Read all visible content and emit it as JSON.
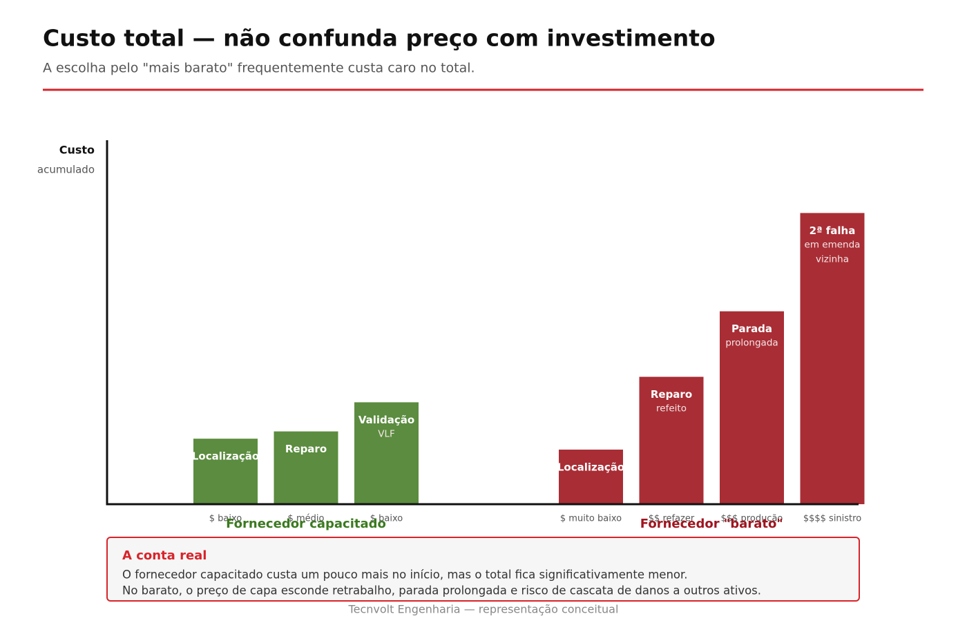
{
  "chart_data": {
    "type": "grouped-bar",
    "title": "Custo total — não confunda preço com investimento",
    "subtitle": "A escolha pelo \"mais barato\" frequentemente custa caro no total.",
    "y_label": "Custo",
    "y_sublabel": "acumulado",
    "ylim": [
      0,
      100
    ],
    "groups": [
      {
        "name": "Fornecedor capacitado",
        "color": "#5b8c3f",
        "label_color": "#3b7a1f",
        "bars": [
          {
            "title": "Localização",
            "notes": [],
            "cost": "$ baixo",
            "value": 18
          },
          {
            "title": "Reparo",
            "notes": [],
            "cost": "$ médio",
            "value": 20
          },
          {
            "title": "Validação",
            "notes": [
              "VLF"
            ],
            "cost": "$ baixo",
            "value": 28
          }
        ]
      },
      {
        "name": "Fornecedor \"barato\"",
        "color": "#a92d35",
        "label_color": "#a0151f",
        "bars": [
          {
            "title": "Localização",
            "notes": [],
            "cost": "$ muito baixo",
            "value": 15
          },
          {
            "title": "Reparo",
            "notes": [
              "refeito"
            ],
            "cost": "$$ refazer",
            "value": 35
          },
          {
            "title": "Parada",
            "notes": [
              "prolongada"
            ],
            "cost": "$$$ produção",
            "value": 53
          },
          {
            "title": "2ª falha",
            "notes": [
              "em emenda",
              "vizinha"
            ],
            "cost": "$$$$ sinistro",
            "value": 80
          }
        ]
      }
    ],
    "callout": {
      "title": "A conta real",
      "lines": [
        "O fornecedor capacitado custa um pouco mais no início, mas o total fica significativamente menor.",
        "No barato, o preço de capa esconde retrabalho, parada prolongada e risco de cascata de danos a outros ativos."
      ]
    },
    "footer": "Tecnvolt Engenharia — representação conceitual"
  }
}
